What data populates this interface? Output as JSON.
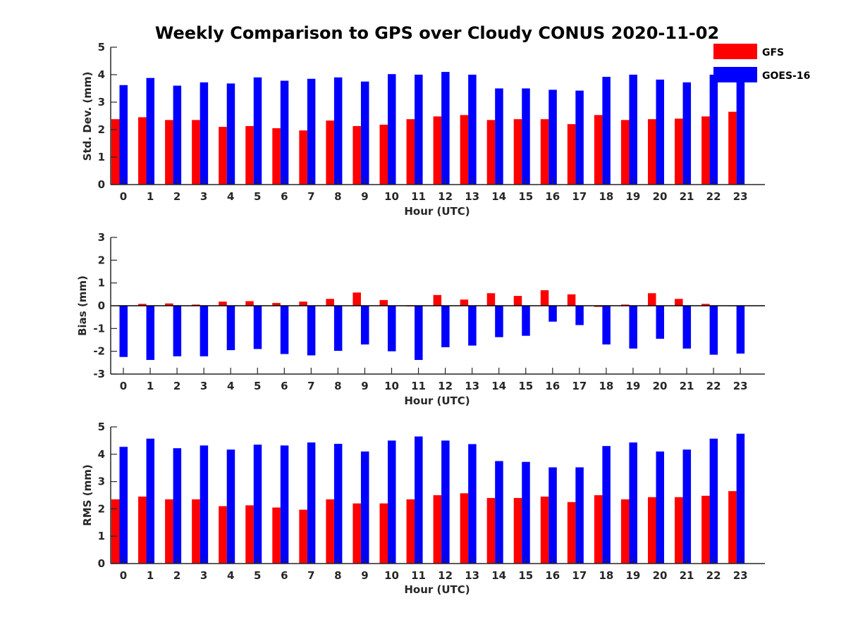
{
  "title": "Weekly Comparison to GPS over Cloudy CONUS 2020-11-02",
  "colors": {
    "GFS": "#ff0000",
    "GOES-16": "#0000ff",
    "axis": "#262626"
  },
  "legend": {
    "placement": "top-right",
    "entries": [
      "GFS",
      "GOES-16"
    ]
  },
  "chart_data": [
    {
      "type": "bar",
      "categories": [
        "0",
        "1",
        "2",
        "3",
        "4",
        "5",
        "6",
        "7",
        "8",
        "9",
        "10",
        "11",
        "12",
        "13",
        "14",
        "15",
        "16",
        "17",
        "18",
        "19",
        "20",
        "21",
        "22",
        "23"
      ],
      "xlabel": "Hour (UTC)",
      "ylabel": "Std. Dev. (mm)",
      "ylim": [
        0,
        5
      ],
      "yticks": [
        "0",
        "1",
        "2",
        "3",
        "4",
        "5"
      ],
      "grid": false,
      "series": [
        {
          "name": "GFS",
          "values": [
            2.38,
            2.45,
            2.35,
            2.35,
            2.1,
            2.13,
            2.05,
            1.97,
            2.33,
            2.13,
            2.18,
            2.38,
            2.48,
            2.53,
            2.35,
            2.38,
            2.38,
            2.2,
            2.53,
            2.35,
            2.38,
            2.4,
            2.48,
            2.65
          ]
        },
        {
          "name": "GOES-16",
          "values": [
            3.62,
            3.88,
            3.6,
            3.72,
            3.68,
            3.9,
            3.78,
            3.85,
            3.9,
            3.75,
            4.02,
            4.0,
            4.1,
            4.0,
            3.5,
            3.5,
            3.45,
            3.42,
            3.92,
            4.0,
            3.82,
            3.72,
            4.0,
            3.8
          ]
        }
      ]
    },
    {
      "type": "bar",
      "categories": [
        "0",
        "1",
        "2",
        "3",
        "4",
        "5",
        "6",
        "7",
        "8",
        "9",
        "10",
        "11",
        "12",
        "13",
        "14",
        "15",
        "16",
        "17",
        "18",
        "19",
        "20",
        "21",
        "22",
        "23"
      ],
      "xlabel": "Hour (UTC)",
      "ylabel": "Bias (mm)",
      "ylim": [
        -3,
        3
      ],
      "yticks": [
        "-3",
        "-2",
        "-1",
        "0",
        "1",
        "2",
        "3"
      ],
      "grid": false,
      "series": [
        {
          "name": "GFS",
          "values": [
            0.0,
            0.08,
            0.1,
            0.05,
            0.18,
            0.2,
            0.12,
            0.18,
            0.3,
            0.58,
            0.25,
            -0.03,
            0.47,
            0.27,
            0.55,
            0.43,
            0.68,
            0.5,
            -0.05,
            0.05,
            0.55,
            0.3,
            0.08,
            -0.02
          ]
        },
        {
          "name": "GOES-16",
          "values": [
            -2.25,
            -2.38,
            -2.22,
            -2.22,
            -1.95,
            -1.9,
            -2.12,
            -2.18,
            -1.98,
            -1.7,
            -2.0,
            -2.38,
            -1.82,
            -1.75,
            -1.38,
            -1.32,
            -0.7,
            -0.85,
            -1.7,
            -1.88,
            -1.45,
            -1.88,
            -2.15,
            -2.1
          ]
        }
      ]
    },
    {
      "type": "bar",
      "categories": [
        "0",
        "1",
        "2",
        "3",
        "4",
        "5",
        "6",
        "7",
        "8",
        "9",
        "10",
        "11",
        "12",
        "13",
        "14",
        "15",
        "16",
        "17",
        "18",
        "19",
        "20",
        "21",
        "22",
        "23"
      ],
      "xlabel": "Hour (UTC)",
      "ylabel": "RMS (mm)",
      "ylim": [
        0,
        5
      ],
      "yticks": [
        "0",
        "1",
        "2",
        "3",
        "4",
        "5"
      ],
      "grid": false,
      "series": [
        {
          "name": "GFS",
          "values": [
            2.35,
            2.45,
            2.35,
            2.35,
            2.1,
            2.13,
            2.05,
            1.97,
            2.35,
            2.2,
            2.2,
            2.35,
            2.5,
            2.57,
            2.4,
            2.4,
            2.45,
            2.25,
            2.5,
            2.35,
            2.43,
            2.43,
            2.48,
            2.65
          ]
        },
        {
          "name": "GOES-16",
          "values": [
            4.27,
            4.57,
            4.22,
            4.32,
            4.17,
            4.35,
            4.32,
            4.43,
            4.38,
            4.1,
            4.5,
            4.65,
            4.5,
            4.37,
            3.75,
            3.72,
            3.52,
            3.52,
            4.3,
            4.43,
            4.1,
            4.17,
            4.57,
            4.75
          ]
        }
      ]
    }
  ]
}
